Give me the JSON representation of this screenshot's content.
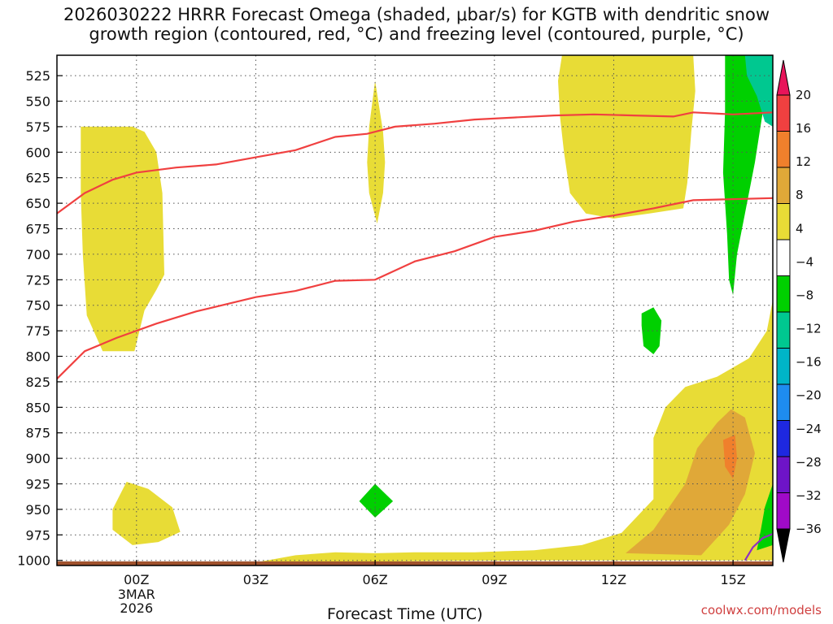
{
  "title": "2026030222 HRRR Forecast Omega (shaded, μbar/s) for KGTB with dendritic snow\ngrowth region (contoured, red, °C) and freezing level (contoured, purple, °C)",
  "xlabel": "Forecast Time (UTC)",
  "credit": "coolwx.com/models",
  "chart_data": {
    "type": "contour",
    "title": "2026030222 HRRR Forecast Omega (shaded, μbar/s) for KGTB with dendritic snow growth region (contoured, red, °C) and freezing level (contoured, purple, °C)",
    "xlabel": "Forecast Time (UTC)",
    "ylabel": "",
    "x_range_hours": [
      -2,
      16
    ],
    "y_range_hpa": [
      505,
      1005
    ],
    "y_scale": "linear-reversed",
    "grid": true,
    "x_ticks": [
      {
        "hour": 0,
        "label": "00Z",
        "sub": [
          "3MAR",
          "2026"
        ]
      },
      {
        "hour": 3,
        "label": "03Z"
      },
      {
        "hour": 6,
        "label": "06Z"
      },
      {
        "hour": 9,
        "label": "09Z"
      },
      {
        "hour": 12,
        "label": "12Z"
      },
      {
        "hour": 15,
        "label": "15Z"
      }
    ],
    "y_ticks": [
      525,
      550,
      575,
      600,
      625,
      650,
      675,
      700,
      725,
      750,
      775,
      800,
      825,
      850,
      875,
      900,
      925,
      950,
      975,
      1000
    ],
    "colorbar": {
      "labels": [
        "20",
        "16",
        "12",
        "8",
        "4",
        "−4",
        "−8",
        "−12",
        "−16",
        "−20",
        "−24",
        "−28",
        "−32",
        "−36"
      ],
      "colors": [
        "#e8145a",
        "#f04040",
        "#f0802c",
        "#e0a838",
        "#e8dc36",
        "#ffffff",
        "#00d000",
        "#00c890",
        "#00b4c8",
        "#1e8cf0",
        "#1e28e0",
        "#6e14c8",
        "#a00ac8",
        "#a0a0a0",
        "#000000"
      ],
      "top_arrow_color": "#e8145a",
      "bottom_arrow_color": "#000000"
    },
    "omega_regions": [
      {
        "band": "4 to 8",
        "color": "#e8dc36",
        "points": [
          [
            -1.4,
            575
          ],
          [
            -0.1,
            575
          ],
          [
            0.2,
            580
          ],
          [
            0.5,
            600
          ],
          [
            0.65,
            640
          ],
          [
            0.7,
            720
          ],
          [
            0.5,
            735
          ],
          [
            0.2,
            755
          ],
          [
            -0.05,
            795
          ],
          [
            -0.85,
            795
          ],
          [
            -1.25,
            760
          ],
          [
            -1.35,
            700
          ],
          [
            -1.4,
            640
          ]
        ]
      },
      {
        "band": "4 to 8",
        "color": "#e8dc36",
        "points": [
          [
            6.0,
            530
          ],
          [
            6.2,
            580
          ],
          [
            6.25,
            610
          ],
          [
            6.2,
            640
          ],
          [
            6.05,
            670
          ],
          [
            5.85,
            640
          ],
          [
            5.8,
            610
          ],
          [
            5.85,
            575
          ]
        ]
      },
      {
        "band": "4 to 8",
        "color": "#e8dc36",
        "points": [
          [
            10.7,
            505
          ],
          [
            14.0,
            505
          ],
          [
            14.05,
            540
          ],
          [
            13.95,
            580
          ],
          [
            13.85,
            630
          ],
          [
            13.75,
            655
          ],
          [
            12.9,
            660
          ],
          [
            12.0,
            665
          ],
          [
            11.3,
            660
          ],
          [
            10.9,
            640
          ],
          [
            10.75,
            600
          ],
          [
            10.65,
            565
          ],
          [
            10.6,
            530
          ]
        ]
      },
      {
        "band": "4 to 8",
        "color": "#e8dc36",
        "points": [
          [
            -0.6,
            950
          ],
          [
            -0.25,
            923
          ],
          [
            0.3,
            930
          ],
          [
            0.9,
            948
          ],
          [
            1.1,
            972
          ],
          [
            0.55,
            982
          ],
          [
            -0.1,
            985
          ],
          [
            -0.6,
            970
          ]
        ]
      },
      {
        "band": "4 to 8",
        "color": "#e8dc36",
        "points": [
          [
            3.0,
            1002
          ],
          [
            4.0,
            995
          ],
          [
            5.0,
            992
          ],
          [
            6.0,
            993
          ],
          [
            7.0,
            992
          ],
          [
            8.5,
            992
          ],
          [
            10.0,
            990
          ],
          [
            11.2,
            985
          ],
          [
            12.2,
            973
          ],
          [
            13.0,
            940
          ],
          [
            13.0,
            880
          ],
          [
            13.3,
            850
          ],
          [
            13.8,
            830
          ],
          [
            14.6,
            820
          ],
          [
            15.4,
            802
          ],
          [
            15.85,
            775
          ],
          [
            16,
            745
          ],
          [
            16,
            1000
          ],
          [
            10,
            1000
          ],
          [
            3,
            1002
          ]
        ]
      },
      {
        "band": "8 to 12",
        "color": "#e0a838",
        "points": [
          [
            12.3,
            993
          ],
          [
            13.0,
            970
          ],
          [
            13.8,
            925
          ],
          [
            14.1,
            890
          ],
          [
            14.6,
            865
          ],
          [
            14.95,
            852
          ],
          [
            15.3,
            860
          ],
          [
            15.55,
            895
          ],
          [
            15.3,
            935
          ],
          [
            14.9,
            965
          ],
          [
            14.2,
            995
          ]
        ]
      },
      {
        "band": "12 to 16",
        "color": "#f0802c",
        "points": [
          [
            14.75,
            882
          ],
          [
            15.05,
            877
          ],
          [
            15.1,
            900
          ],
          [
            15.0,
            920
          ],
          [
            14.8,
            908
          ]
        ]
      },
      {
        "band": "-4 to -8",
        "color": "#00d000",
        "points": [
          [
            14.8,
            505
          ],
          [
            15.55,
            505
          ],
          [
            15.75,
            560
          ],
          [
            15.55,
            610
          ],
          [
            15.3,
            660
          ],
          [
            15.1,
            700
          ],
          [
            15.0,
            740
          ],
          [
            14.9,
            725
          ],
          [
            14.85,
            680
          ],
          [
            14.75,
            620
          ],
          [
            14.8,
            560
          ]
        ]
      },
      {
        "band": "-8 to -12",
        "color": "#00c890",
        "points": [
          [
            15.3,
            505
          ],
          [
            16,
            505
          ],
          [
            16,
            575
          ],
          [
            15.8,
            570
          ],
          [
            15.6,
            545
          ],
          [
            15.35,
            525
          ]
        ]
      },
      {
        "band": "-4 to -8",
        "color": "#00d000",
        "points": [
          [
            12.7,
            758
          ],
          [
            13.0,
            752
          ],
          [
            13.2,
            765
          ],
          [
            13.15,
            790
          ],
          [
            13.0,
            798
          ],
          [
            12.75,
            790
          ],
          [
            12.7,
            770
          ]
        ]
      },
      {
        "band": "-4 to -8",
        "color": "#00d000",
        "points": [
          [
            5.6,
            942
          ],
          [
            6.0,
            925
          ],
          [
            6.45,
            942
          ],
          [
            6.0,
            958
          ]
        ]
      },
      {
        "band": "-4 to -8",
        "color": "#00d000",
        "points": [
          [
            15.6,
            990
          ],
          [
            15.7,
            970
          ],
          [
            15.8,
            948
          ],
          [
            16,
            925
          ],
          [
            16,
            985
          ]
        ]
      }
    ],
    "dendritic_contours": [
      {
        "name": "",
        "color": "#f04040",
        "points": [
          [
            -2,
            660
          ],
          [
            -1.3,
            640
          ],
          [
            -0.6,
            627
          ],
          [
            0,
            620
          ],
          [
            1,
            615
          ],
          [
            2,
            612
          ],
          [
            3,
            605
          ],
          [
            4,
            598
          ],
          [
            5,
            585
          ],
          [
            5.8,
            582
          ],
          [
            6.5,
            575
          ],
          [
            7.5,
            572
          ],
          [
            8.5,
            568
          ],
          [
            9.5,
            566
          ],
          [
            10.5,
            564
          ],
          [
            11.5,
            563
          ],
          [
            12.5,
            564
          ],
          [
            13.5,
            565
          ],
          [
            14.0,
            561
          ],
          [
            15.0,
            563
          ],
          [
            16,
            561
          ]
        ]
      },
      {
        "name": "",
        "color": "#f04040",
        "points": [
          [
            -2,
            822
          ],
          [
            -1.3,
            795
          ],
          [
            -0.5,
            782
          ],
          [
            0.5,
            768
          ],
          [
            1.5,
            756
          ],
          [
            3,
            742
          ],
          [
            4,
            736
          ],
          [
            5,
            726
          ],
          [
            6,
            725
          ],
          [
            7,
            707
          ],
          [
            8,
            697
          ],
          [
            9,
            683
          ],
          [
            10,
            677
          ],
          [
            11,
            668
          ],
          [
            12,
            662
          ],
          [
            13,
            655
          ],
          [
            14,
            647
          ],
          [
            15,
            646
          ],
          [
            16,
            645
          ]
        ]
      }
    ],
    "freezing_level_contours": [
      {
        "name": "",
        "color": "#9030c0",
        "points": [
          [
            15.3,
            1000
          ],
          [
            15.5,
            987
          ],
          [
            15.75,
            978
          ],
          [
            16,
            974
          ]
        ]
      }
    ],
    "ground": {
      "color": "#a0522d"
    }
  }
}
